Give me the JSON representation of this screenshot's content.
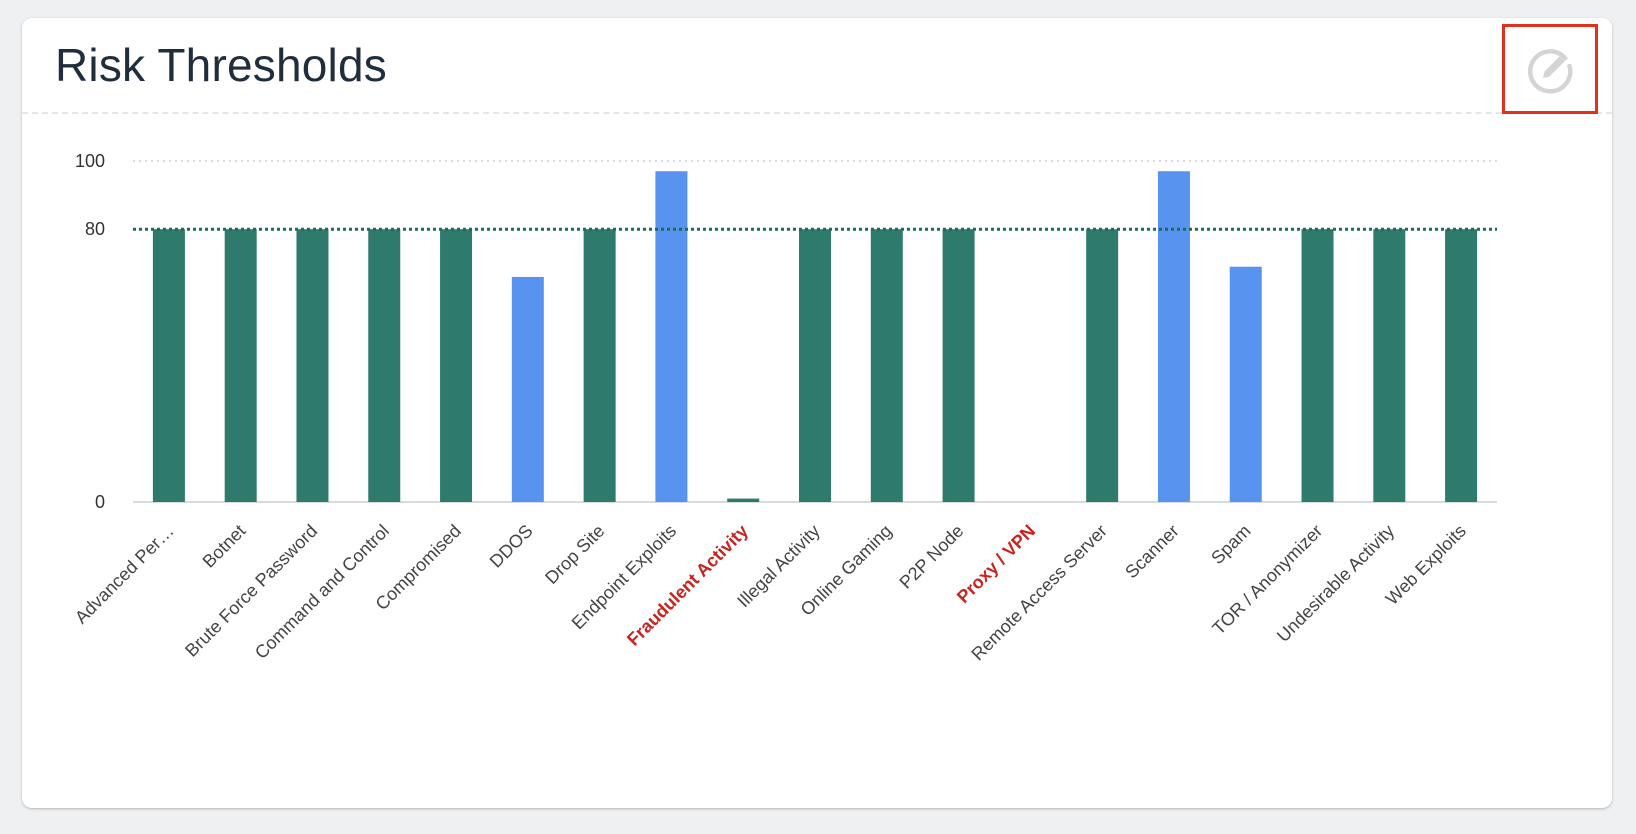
{
  "card": {
    "title": "Risk Thresholds",
    "edit_icon": "pencil-circle-icon"
  },
  "colors": {
    "threshold_bar": "#2e7b6e",
    "above_bar": "#5793ef",
    "threshold_line": "#1f6b55",
    "grid": "#d8dade",
    "alert_label": "#c8231d",
    "edit_highlight": "#e0301e"
  },
  "chart_data": {
    "type": "bar",
    "categories": [
      "Advanced Per…",
      "Botnet",
      "Brute Force Password",
      "Command and Control",
      "Compromised",
      "DDOS",
      "Drop Site",
      "Endpoint Exploits",
      "Fraudulent Activity",
      "Illegal Activity",
      "Online Gaming",
      "P2P Node",
      "Proxy / VPN",
      "Remote Access Server",
      "Scanner",
      "Spam",
      "TOR / Anonymizer",
      "Undesirable Activity",
      "Web Exploits"
    ],
    "values": [
      80,
      80,
      80,
      80,
      80,
      66,
      80,
      97,
      1,
      80,
      80,
      80,
      0,
      80,
      97,
      69,
      80,
      80,
      80
    ],
    "bar_kind": [
      "threshold",
      "threshold",
      "threshold",
      "threshold",
      "threshold",
      "custom",
      "threshold",
      "custom",
      "threshold",
      "threshold",
      "threshold",
      "threshold",
      "threshold",
      "threshold",
      "custom",
      "custom",
      "threshold",
      "threshold",
      "threshold"
    ],
    "highlighted_labels": [
      "Fraudulent Activity",
      "Proxy / VPN"
    ],
    "threshold": 80,
    "yticks": [
      0,
      80,
      100
    ],
    "ylim": [
      0,
      100
    ],
    "title": "",
    "xlabel": "",
    "ylabel": "",
    "grid": true
  }
}
